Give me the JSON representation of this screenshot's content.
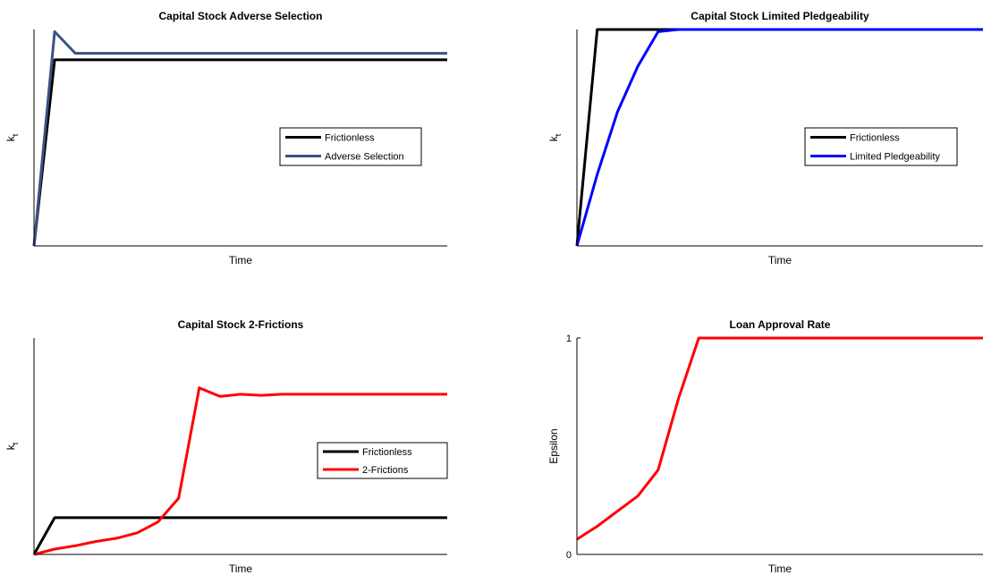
{
  "chart_data": [
    {
      "type": "line",
      "title": "Capital Stock Adverse Selection",
      "xlabel": "Time",
      "ylabel": "k",
      "ylabel_sub": "t",
      "xlim": [
        0,
        20
      ],
      "ylim": [
        0,
        1
      ],
      "show_yticks": false,
      "legend": "center-right",
      "series": [
        {
          "name": "Frictionless",
          "color": "#000000",
          "x": [
            0,
            1,
            2,
            3,
            4,
            5,
            6,
            7,
            8,
            9,
            10,
            11,
            12,
            13,
            14,
            15,
            16,
            17,
            18,
            19,
            20
          ],
          "y": [
            0,
            0.86,
            0.86,
            0.86,
            0.86,
            0.86,
            0.86,
            0.86,
            0.86,
            0.86,
            0.86,
            0.86,
            0.86,
            0.86,
            0.86,
            0.86,
            0.86,
            0.86,
            0.86,
            0.86,
            0.86
          ]
        },
        {
          "name": "Adverse Selection",
          "color": "#3b5283",
          "x": [
            0,
            1,
            2,
            3,
            4,
            5,
            6,
            7,
            8,
            9,
            10,
            11,
            12,
            13,
            14,
            15,
            16,
            17,
            18,
            19,
            20
          ],
          "y": [
            0,
            0.99,
            0.89,
            0.89,
            0.89,
            0.89,
            0.89,
            0.89,
            0.89,
            0.89,
            0.89,
            0.89,
            0.89,
            0.89,
            0.89,
            0.89,
            0.89,
            0.89,
            0.89,
            0.89,
            0.89
          ]
        }
      ]
    },
    {
      "type": "line",
      "title": "Capital Stock Limited Pledgeability",
      "xlabel": "Time",
      "ylabel": "k",
      "ylabel_sub": "t",
      "xlim": [
        0,
        20
      ],
      "ylim": [
        0,
        1
      ],
      "show_yticks": false,
      "legend": "center-right",
      "series": [
        {
          "name": "Frictionless",
          "color": "#000000",
          "x": [
            0,
            1,
            2,
            3,
            4,
            5,
            6,
            7,
            8,
            9,
            10,
            11,
            12,
            13,
            14,
            15,
            16,
            17,
            18,
            19,
            20
          ],
          "y": [
            0,
            1,
            1,
            1,
            1,
            1,
            1,
            1,
            1,
            1,
            1,
            1,
            1,
            1,
            1,
            1,
            1,
            1,
            1,
            1,
            1
          ]
        },
        {
          "name": "Limited Pledgeability",
          "color": "#0000ff",
          "x": [
            0,
            1,
            2,
            3,
            4,
            5,
            6,
            7,
            8,
            9,
            10,
            11,
            12,
            13,
            14,
            15,
            16,
            17,
            18,
            19,
            20
          ],
          "y": [
            0,
            0.33,
            0.62,
            0.83,
            0.99,
            1,
            1,
            1,
            1,
            1,
            1,
            1,
            1,
            1,
            1,
            1,
            1,
            1,
            1,
            1,
            1
          ]
        }
      ]
    },
    {
      "type": "line",
      "title": "Capital Stock 2-Frictions",
      "xlabel": "Time",
      "ylabel": "k",
      "ylabel_sub": "t",
      "xlim": [
        0,
        20
      ],
      "ylim": [
        0,
        1
      ],
      "show_yticks": false,
      "legend": "center-right",
      "series": [
        {
          "name": "Frictionless",
          "color": "#000000",
          "x": [
            0,
            1,
            2,
            3,
            4,
            5,
            6,
            7,
            8,
            9,
            10,
            11,
            12,
            13,
            14,
            15,
            16,
            17,
            18,
            19,
            20
          ],
          "y": [
            0,
            0.17,
            0.17,
            0.17,
            0.17,
            0.17,
            0.17,
            0.17,
            0.17,
            0.17,
            0.17,
            0.17,
            0.17,
            0.17,
            0.17,
            0.17,
            0.17,
            0.17,
            0.17,
            0.17,
            0.17
          ]
        },
        {
          "name": "2-Frictions",
          "color": "#ff0000",
          "x": [
            0,
            1,
            2,
            3,
            4,
            5,
            6,
            7,
            8,
            9,
            10,
            11,
            12,
            13,
            14,
            15,
            16,
            17,
            18,
            19,
            20
          ],
          "y": [
            0,
            0.025,
            0.04,
            0.06,
            0.075,
            0.1,
            0.15,
            0.26,
            0.77,
            0.73,
            0.74,
            0.735,
            0.74,
            0.74,
            0.74,
            0.74,
            0.74,
            0.74,
            0.74,
            0.74,
            0.74
          ]
        }
      ]
    },
    {
      "type": "line",
      "title": "Loan Approval Rate",
      "xlabel": "Time",
      "ylabel": "Epsilon",
      "ylabel_sub": "",
      "xlim": [
        0,
        20
      ],
      "ylim": [
        0,
        1
      ],
      "show_yticks": true,
      "yticks": [
        0,
        1
      ],
      "series": [
        {
          "name": "",
          "color": "#ff0000",
          "x": [
            0,
            1,
            2,
            3,
            4,
            5,
            6,
            7,
            8,
            9,
            10,
            11,
            12,
            13,
            14,
            15,
            16,
            17,
            18,
            19,
            20
          ],
          "y": [
            0.07,
            0.13,
            0.2,
            0.27,
            0.39,
            0.72,
            1,
            1,
            1,
            1,
            1,
            1,
            1,
            1,
            1,
            1,
            1,
            1,
            1,
            1,
            1
          ]
        }
      ]
    }
  ]
}
